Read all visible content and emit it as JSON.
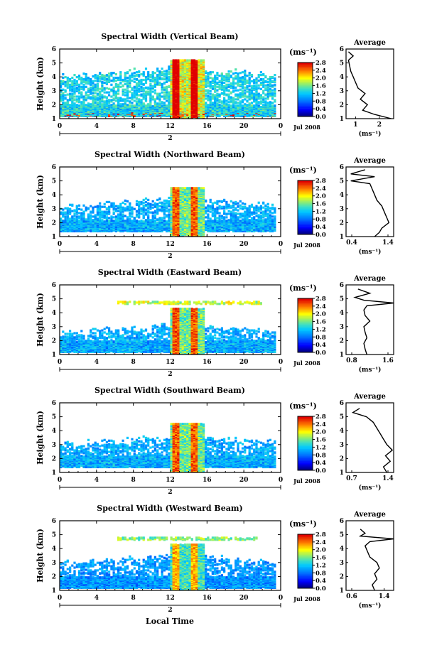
{
  "figure": {
    "xlabel": "Local Time",
    "date_label": "Jul 2008",
    "day_label": "2",
    "colorbar_unit": "(ms⁻¹)",
    "avg_title": "Average",
    "avg_xunit": "(ms⁻¹)",
    "ylabel": "Height (km)"
  },
  "chart_data": [
    {
      "type": "heatmap",
      "title": "Spectral Width (Vertical Beam)",
      "ylabel": "Height (km)",
      "xlabel": "Local Time",
      "x_ticks": [
        "0",
        "4",
        "8",
        "12",
        "16",
        "20",
        "0"
      ],
      "y_ticks": [
        "1",
        "2",
        "3",
        "4",
        "5",
        "6"
      ],
      "xlim": [
        0,
        24
      ],
      "ylim": [
        1,
        6
      ],
      "colorbar_ticks": [
        "0.0",
        "0.4",
        "0.8",
        "1.2",
        "1.6",
        "2.0",
        "2.4",
        "2.8"
      ],
      "colorbar_range": [
        0.0,
        2.8
      ],
      "features": {
        "bottom": 1.1,
        "upper_top": 4.5,
        "burst_top": 5.1,
        "high_layer": null,
        "intensity": 1.2
      },
      "average_profile": {
        "x_ticks": [
          "1",
          "2"
        ],
        "xlim": [
          0.6,
          2.6
        ],
        "height": [
          1.0,
          1.3,
          1.6,
          2.0,
          2.4,
          2.8,
          3.2,
          3.6,
          4.0,
          4.4,
          4.8,
          5.2,
          5.5,
          5.8
        ],
        "value": [
          2.5,
          1.8,
          1.3,
          1.5,
          1.2,
          1.4,
          1.1,
          1.0,
          0.9,
          0.8,
          0.75,
          0.7,
          0.9,
          0.7
        ]
      }
    },
    {
      "type": "heatmap",
      "title": "Spectral Width (Northward Beam)",
      "ylabel": "Height (km)",
      "xlabel": "Local Time",
      "x_ticks": [
        "0",
        "4",
        "8",
        "12",
        "16",
        "20",
        "0"
      ],
      "y_ticks": [
        "1",
        "2",
        "3",
        "4",
        "5",
        "6"
      ],
      "xlim": [
        0,
        24
      ],
      "ylim": [
        1,
        6
      ],
      "colorbar_ticks": [
        "0.0",
        "0.4",
        "0.8",
        "1.2",
        "1.6",
        "2.0",
        "2.4",
        "2.8"
      ],
      "colorbar_range": [
        0.0,
        2.8
      ],
      "features": {
        "bottom": 1.3,
        "upper_top": 3.6,
        "burst_top": 4.4,
        "high_layer": null,
        "intensity": 1.0
      },
      "average_profile": {
        "x_ticks": [
          "0.4",
          "1.4"
        ],
        "xlim": [
          0.4,
          1.4
        ],
        "height": [
          1.0,
          1.3,
          1.6,
          2.0,
          2.4,
          2.8,
          3.2,
          3.6,
          4.0,
          4.4,
          4.8,
          5.0,
          5.3,
          5.5,
          5.8
        ],
        "value": [
          1.0,
          1.1,
          1.15,
          1.3,
          1.25,
          1.2,
          1.15,
          1.05,
          1.0,
          0.95,
          0.9,
          0.5,
          1.0,
          0.5,
          0.8
        ]
      }
    },
    {
      "type": "heatmap",
      "title": "Spectral Width (Eastward Beam)",
      "ylabel": "Height (km)",
      "xlabel": "Local Time",
      "x_ticks": [
        "0",
        "4",
        "8",
        "12",
        "16",
        "20",
        "0"
      ],
      "y_ticks": [
        "1",
        "2",
        "3",
        "4",
        "5",
        "6"
      ],
      "xlim": [
        0,
        24
      ],
      "ylim": [
        1,
        6
      ],
      "colorbar_ticks": [
        "0.0",
        "0.4",
        "0.8",
        "1.2",
        "1.6",
        "2.0",
        "2.4",
        "2.8"
      ],
      "colorbar_range": [
        0.0,
        2.8
      ],
      "features": {
        "bottom": 1.1,
        "upper_top": 3.0,
        "burst_top": 4.2,
        "high_layer": 4.6,
        "intensity": 1.0
      },
      "average_profile": {
        "x_ticks": [
          "0.8",
          "1.6"
        ],
        "xlim": [
          0.8,
          1.6
        ],
        "height": [
          1.0,
          1.4,
          1.8,
          2.2,
          2.6,
          3.0,
          3.4,
          3.8,
          4.2,
          4.5,
          4.7,
          4.9,
          5.1,
          5.4,
          5.7
        ],
        "value": [
          1.15,
          1.12,
          1.1,
          1.15,
          1.12,
          1.1,
          1.2,
          1.12,
          1.1,
          1.15,
          1.6,
          1.1,
          0.95,
          1.2,
          1.0
        ]
      }
    },
    {
      "type": "heatmap",
      "title": "Spectral Width (Southward Beam)",
      "ylabel": "Height (km)",
      "xlabel": "Local Time",
      "x_ticks": [
        "0",
        "4",
        "8",
        "12",
        "16",
        "20",
        "0"
      ],
      "y_ticks": [
        "1",
        "2",
        "3",
        "4",
        "5",
        "6"
      ],
      "xlim": [
        0,
        24
      ],
      "ylim": [
        1,
        6
      ],
      "colorbar_ticks": [
        "0.0",
        "0.4",
        "0.8",
        "1.2",
        "1.6",
        "2.0",
        "2.4",
        "2.8"
      ],
      "colorbar_range": [
        0.0,
        2.8
      ],
      "features": {
        "bottom": 1.3,
        "upper_top": 3.5,
        "burst_top": 4.4,
        "high_layer": null,
        "intensity": 1.0
      },
      "average_profile": {
        "x_ticks": [
          "0.7",
          "1.4"
        ],
        "xlim": [
          0.7,
          1.4
        ],
        "height": [
          1.0,
          1.4,
          1.8,
          2.2,
          2.6,
          3.0,
          3.4,
          3.8,
          4.2,
          4.6,
          5.0,
          5.3,
          5.6
        ],
        "value": [
          1.3,
          1.25,
          1.35,
          1.28,
          1.38,
          1.3,
          1.25,
          1.2,
          1.15,
          1.1,
          1.0,
          0.8,
          0.9
        ]
      }
    },
    {
      "type": "heatmap",
      "title": "Spectral Width (Westward Beam)",
      "ylabel": "Height (km)",
      "xlabel": "Local Time",
      "x_ticks": [
        "0",
        "4",
        "8",
        "12",
        "16",
        "20",
        "0"
      ],
      "y_ticks": [
        "1",
        "2",
        "3",
        "4",
        "5",
        "6"
      ],
      "xlim": [
        0,
        24
      ],
      "ylim": [
        1,
        6
      ],
      "colorbar_ticks": [
        "0.0",
        "0.4",
        "0.8",
        "1.2",
        "1.6",
        "2.0",
        "2.4",
        "2.8"
      ],
      "colorbar_range": [
        0.0,
        2.8
      ],
      "features": {
        "bottom": 1.1,
        "upper_top": 3.4,
        "burst_top": 4.2,
        "high_layer": 4.6,
        "intensity": 0.9
      },
      "average_profile": {
        "x_ticks": [
          "0.6",
          "1.4"
        ],
        "xlim": [
          0.6,
          1.6
        ],
        "height": [
          1.0,
          1.4,
          1.8,
          2.2,
          2.6,
          3.0,
          3.4,
          3.8,
          4.2,
          4.5,
          4.7,
          4.9,
          5.1,
          5.4
        ],
        "value": [
          1.2,
          1.15,
          1.25,
          1.2,
          1.3,
          1.25,
          1.1,
          1.05,
          1.0,
          1.1,
          1.6,
          0.9,
          1.0,
          0.9
        ]
      }
    }
  ]
}
